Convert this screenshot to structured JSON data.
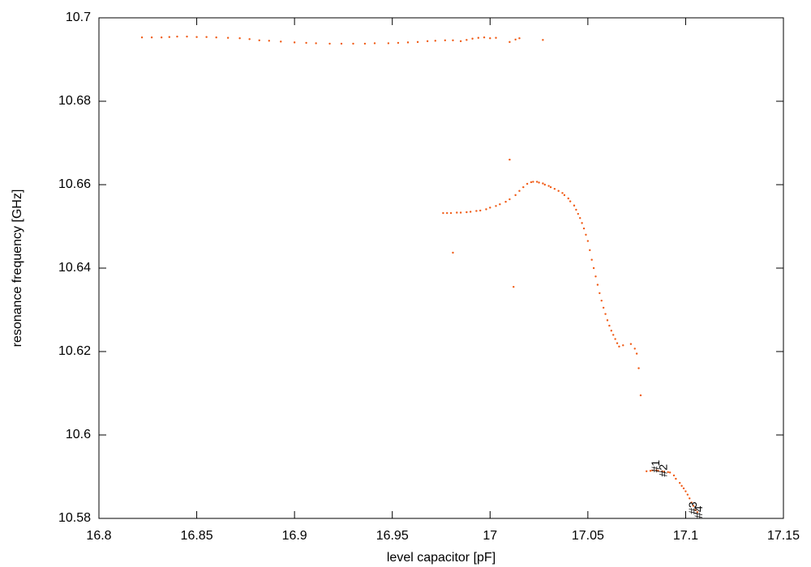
{
  "chart_data": {
    "type": "scatter",
    "x_label": "level capacitor [pF]",
    "y_label": "resonance frequency [GHz]",
    "xlim": [
      16.8,
      17.15
    ],
    "ylim": [
      10.58,
      10.7
    ],
    "xticks": [
      16.8,
      16.85,
      16.9,
      16.95,
      17,
      17.05,
      17.1,
      17.15
    ],
    "yticks": [
      10.58,
      10.6,
      10.62,
      10.64,
      10.66,
      10.68,
      10.7
    ],
    "grid": false,
    "color": "#f05a14",
    "x": [
      16.822,
      16.827,
      16.832,
      16.836,
      16.84,
      16.845,
      16.85,
      16.855,
      16.86,
      16.866,
      16.872,
      16.877,
      16.882,
      16.887,
      16.893,
      16.9,
      16.906,
      16.911,
      16.918,
      16.924,
      16.93,
      16.936,
      16.941,
      16.948,
      16.953,
      16.958,
      16.963,
      16.968,
      16.972,
      16.977,
      16.981,
      16.985,
      16.988,
      16.991,
      16.994,
      16.997,
      17.0,
      17.003,
      17.01,
      17.013,
      17.015,
      17.027,
      16.976,
      16.978,
      16.98,
      16.983,
      16.985,
      16.988,
      16.99,
      16.993,
      16.995,
      16.998,
      17.0,
      17.003,
      17.005,
      17.008,
      17.01,
      17.013,
      17.015,
      17.017,
      17.019,
      17.021,
      17.022,
      17.024,
      17.025,
      17.027,
      17.028,
      17.03,
      17.031,
      17.033,
      17.035,
      17.037,
      17.038,
      17.04,
      17.041,
      17.043,
      17.044,
      17.045,
      17.046,
      17.047,
      17.048,
      17.049,
      17.05,
      17.051,
      17.052,
      17.053,
      17.054,
      17.055,
      17.056,
      17.057,
      17.058,
      17.059,
      17.06,
      17.061,
      17.062,
      17.063,
      17.064,
      17.065,
      17.066,
      17.068,
      17.072,
      17.074,
      17.075,
      17.076,
      17.077,
      17.01,
      16.981,
      17.012,
      17.08,
      17.082,
      17.083,
      17.085,
      17.086,
      17.088,
      17.089,
      17.091,
      17.092,
      17.094,
      17.095,
      17.097,
      17.098,
      17.099,
      17.1,
      17.101,
      17.102,
      17.103,
      17.104,
      17.105,
      17.106
    ],
    "y": [
      10.6953,
      10.6953,
      10.6953,
      10.6954,
      10.6955,
      10.6955,
      10.6954,
      10.6954,
      10.6953,
      10.6952,
      10.6951,
      10.6949,
      10.6946,
      10.6945,
      10.6943,
      10.6941,
      10.694,
      10.6939,
      10.6938,
      10.6938,
      10.6938,
      10.6938,
      10.6939,
      10.6939,
      10.694,
      10.6941,
      10.6942,
      10.6944,
      10.6945,
      10.6946,
      10.6946,
      10.6944,
      10.6947,
      10.695,
      10.6952,
      10.6953,
      10.6951,
      10.6952,
      10.6942,
      10.6948,
      10.6951,
      10.6947,
      10.6532,
      10.6532,
      10.6532,
      10.6533,
      10.6533,
      10.6534,
      10.6535,
      10.6537,
      10.6538,
      10.6541,
      10.6545,
      10.6549,
      10.6553,
      10.6559,
      10.6565,
      10.6575,
      10.6585,
      10.6594,
      10.6602,
      10.6606,
      10.6607,
      10.6607,
      10.6605,
      10.6603,
      10.66,
      10.6597,
      10.6594,
      10.659,
      10.6585,
      10.658,
      10.6575,
      10.6567,
      10.656,
      10.655,
      10.654,
      10.653,
      10.652,
      10.6508,
      10.6495,
      10.648,
      10.6465,
      10.6443,
      10.642,
      10.64,
      10.638,
      10.636,
      10.634,
      10.6322,
      10.6305,
      10.629,
      10.6275,
      10.6262,
      10.625,
      10.624,
      10.623,
      10.622,
      10.6212,
      10.6215,
      10.6218,
      10.6207,
      10.6195,
      10.616,
      10.6095,
      10.666,
      10.6437,
      10.6355,
      10.5913,
      10.5914,
      10.5915,
      10.5915,
      10.5914,
      10.5913,
      10.5912,
      10.5911,
      10.591,
      10.5903,
      10.5895,
      10.5885,
      10.5878,
      10.5872,
      10.5865,
      10.5857,
      10.5848,
      10.5838,
      10.583,
      10.582,
      10.5815
    ],
    "annotations": [
      {
        "text": "#1",
        "x": 17.085,
        "y": 10.5925
      },
      {
        "text": "#2",
        "x": 17.089,
        "y": 10.5915
      },
      {
        "text": "#3",
        "x": 17.104,
        "y": 10.5825
      },
      {
        "text": "#4",
        "x": 17.107,
        "y": 10.5815
      }
    ]
  }
}
